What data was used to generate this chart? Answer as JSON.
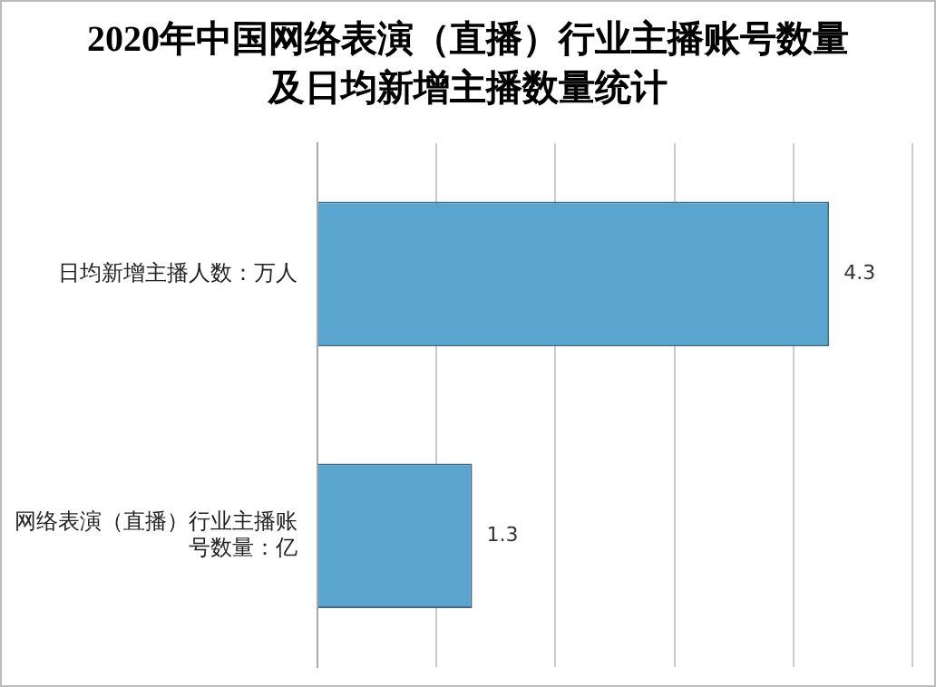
{
  "chart_data": {
    "type": "bar",
    "orientation": "horizontal",
    "title": "2020年中国网络表演（直播）行业主播账号数量及日均新增主播数量统计",
    "categories": [
      "日均新增主播人数：万人",
      "网络表演（直播）行业主播账号数量：亿"
    ],
    "values": [
      4.3,
      1.3
    ],
    "color": "#5aa5cf",
    "xlim": [
      0,
      5
    ],
    "xticks": [
      {
        "value": 0,
        "label": null
      },
      {
        "value": 1,
        "label": null
      },
      {
        "value": 2,
        "label": null
      },
      {
        "value": 3,
        "label": null
      },
      {
        "value": 4,
        "label": null
      },
      {
        "value": 5,
        "label": null
      }
    ],
    "grid": "x",
    "tick_labels": "y",
    "data_labels": true,
    "legend": false
  }
}
